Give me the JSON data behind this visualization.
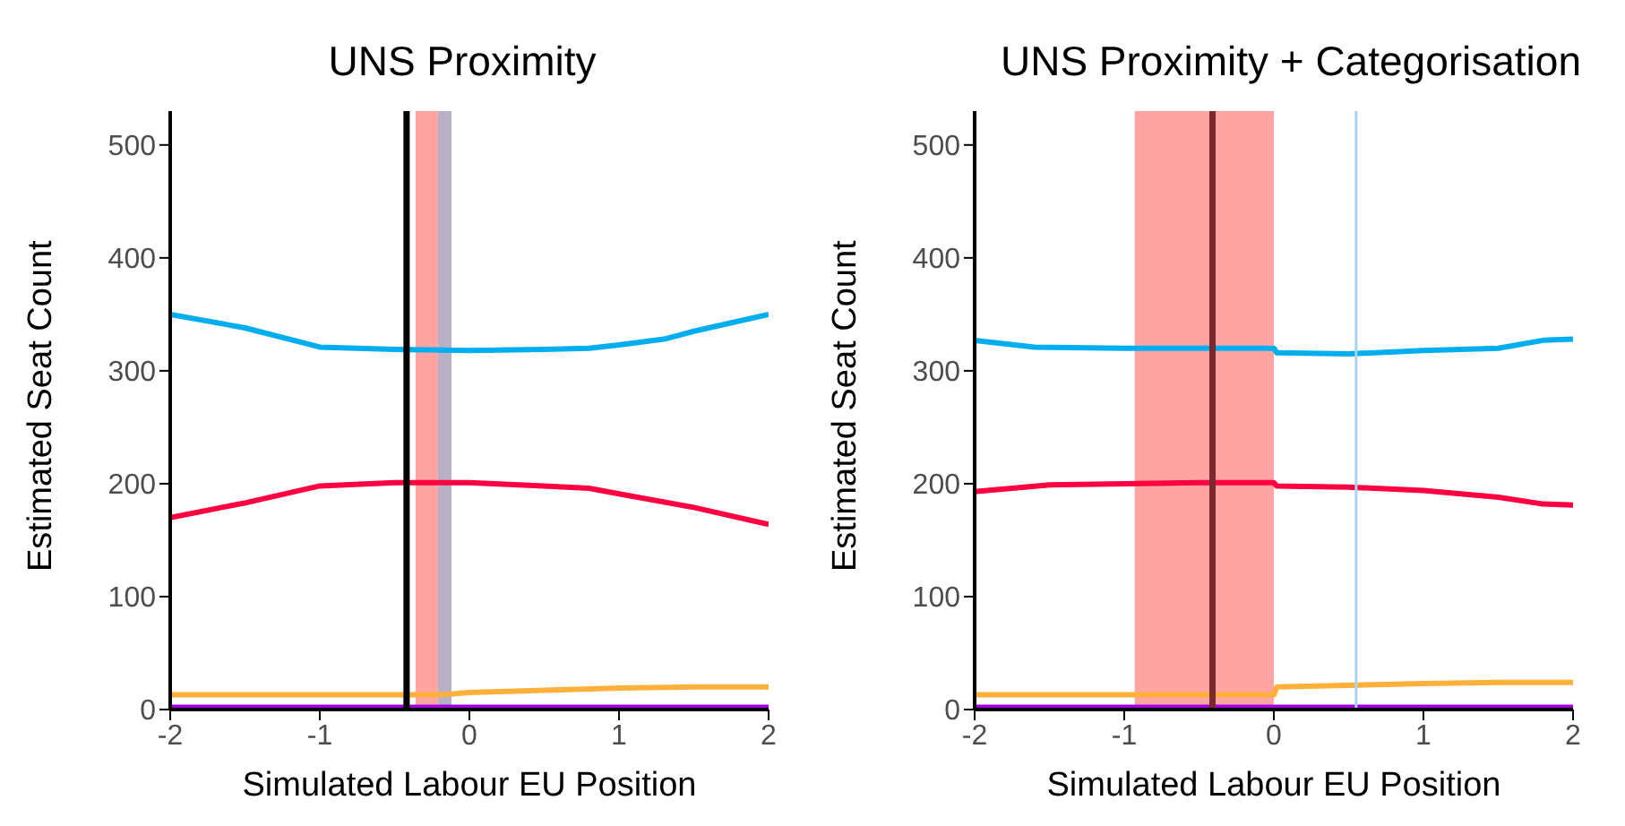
{
  "chart_data": [
    {
      "type": "line",
      "title": "UNS Proximity",
      "xlabel": "Simulated Labour EU Position",
      "ylabel": "Estimated Seat Count",
      "xlim": [
        -2,
        2
      ],
      "xticks": [
        -2,
        -1,
        0,
        1,
        2
      ],
      "ylim": [
        0,
        530
      ],
      "yticks": [
        0,
        100,
        200,
        300,
        400,
        500
      ],
      "series": [
        {
          "color": "#00aeef",
          "x": [
            -2,
            -1.5,
            -1,
            -0.5,
            0,
            0.5,
            0.8,
            1,
            1.3,
            1.5,
            2
          ],
          "values": [
            350,
            338,
            321,
            319,
            318,
            319,
            320,
            323,
            328,
            335,
            350
          ]
        },
        {
          "color": "#ff0040",
          "x": [
            -2,
            -1.5,
            -1,
            -0.5,
            0,
            0.5,
            0.8,
            1,
            1.5,
            2
          ],
          "values": [
            170,
            183,
            198,
            201,
            201,
            198,
            196,
            191,
            179,
            164
          ]
        },
        {
          "color": "#ffb03b",
          "x": [
            -2,
            -0.2,
            0,
            1,
            1.5,
            2
          ],
          "values": [
            13,
            13,
            15,
            19,
            20,
            20
          ]
        },
        {
          "color": "#a000e0",
          "x": [
            -2,
            2
          ],
          "values": [
            2,
            2
          ]
        }
      ],
      "bands": [
        {
          "axis": "x",
          "from": -0.36,
          "to": -0.21,
          "color": "#ff9a98"
        },
        {
          "axis": "x",
          "from": -0.21,
          "to": -0.12,
          "color": "#b0a8c0"
        }
      ],
      "ref_lines": [
        {
          "axis": "x",
          "value": -0.42,
          "color": "#000000"
        }
      ]
    },
    {
      "type": "line",
      "title": "UNS Proximity + Categorisation",
      "xlabel": "Simulated Labour EU Position",
      "ylabel": "Estimated Seat Count",
      "xlim": [
        -2,
        2
      ],
      "xticks": [
        -2,
        -1,
        0,
        1,
        2
      ],
      "ylim": [
        0,
        530
      ],
      "yticks": [
        0,
        100,
        200,
        300,
        400,
        500
      ],
      "series": [
        {
          "color": "#00aeef",
          "x": [
            -2,
            -1.6,
            -1,
            0,
            0.02,
            0.5,
            1,
            1.5,
            1.8,
            2
          ],
          "values": [
            327,
            321,
            320,
            320,
            316,
            315,
            318,
            320,
            327,
            328
          ]
        },
        {
          "color": "#ff0040",
          "x": [
            -2,
            -1.5,
            -0.5,
            0,
            0.02,
            0.5,
            1,
            1.5,
            1.8,
            2
          ],
          "values": [
            193,
            199,
            201,
            201,
            198,
            197,
            194,
            188,
            182,
            181
          ]
        },
        {
          "color": "#ffb03b",
          "x": [
            -2,
            0,
            0.02,
            1,
            1.5,
            2
          ],
          "values": [
            13,
            13,
            20,
            23,
            24,
            24
          ]
        },
        {
          "color": "#a000e0",
          "x": [
            -2,
            2
          ],
          "values": [
            2,
            2
          ]
        }
      ],
      "bands": [
        {
          "axis": "x",
          "from": -0.93,
          "to": 0,
          "color": "#ff9a98"
        }
      ],
      "ref_lines": [
        {
          "axis": "x",
          "value": -0.41,
          "color": "#7a2a2e"
        },
        {
          "axis": "x",
          "value": 0.55,
          "color": "#a8d4f0"
        }
      ]
    }
  ]
}
